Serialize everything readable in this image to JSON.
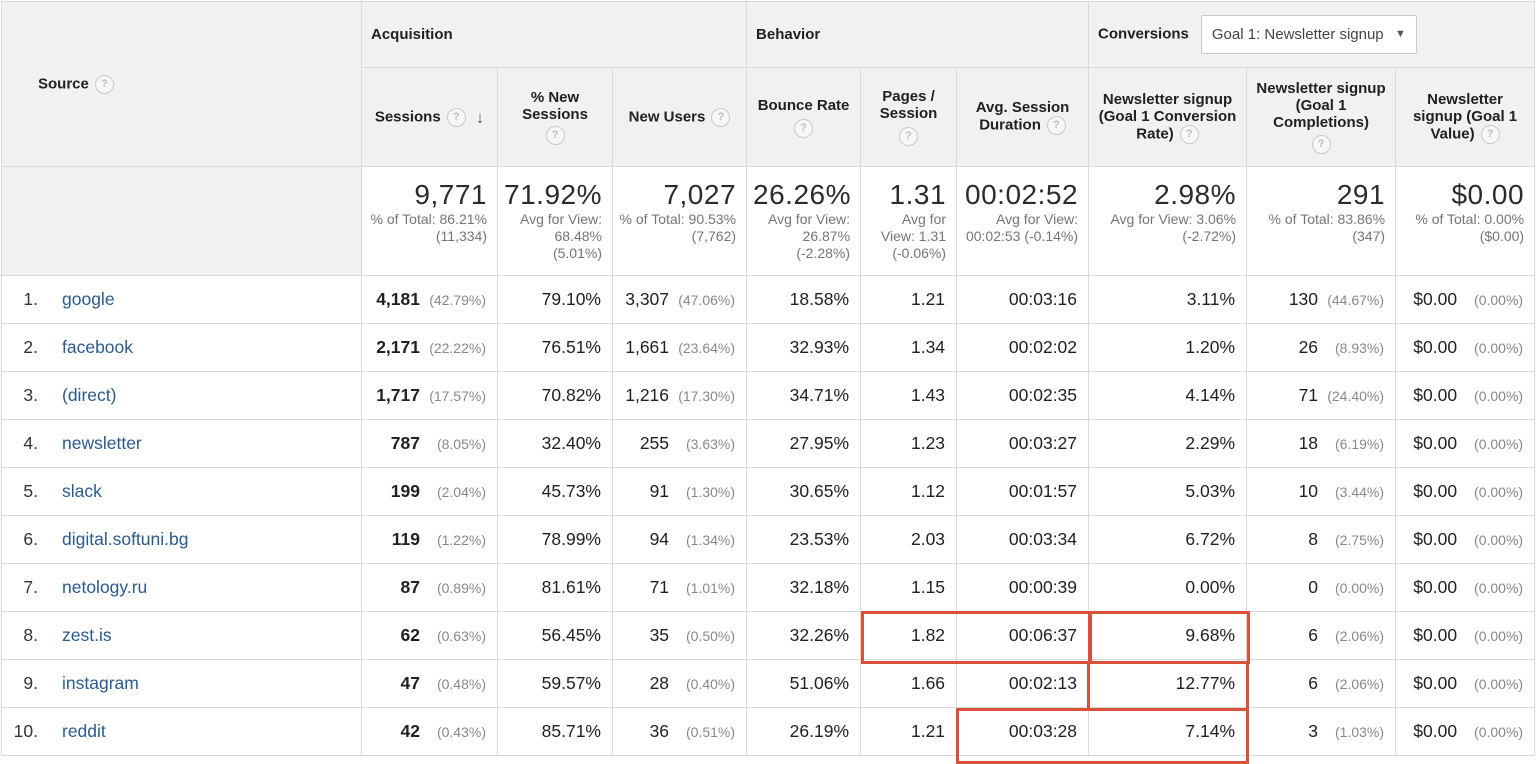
{
  "groups": {
    "acquisition": "Acquisition",
    "behavior": "Behavior",
    "conversions": "Conversions",
    "goal_selected": "Goal 1: Newsletter signup"
  },
  "columns": {
    "source": "Source",
    "sessions": "Sessions",
    "new_sessions": "% New Sessions",
    "new_users": "New Users",
    "bounce_rate": "Bounce Rate",
    "pages_session": "Pages / Session",
    "avg_duration": "Avg. Session Duration",
    "conv_rate": "Newsletter signup (Goal 1 Conversion Rate)",
    "completions": "Newsletter signup (Goal 1 Completions)",
    "value": "Newsletter signup (Goal 1 Value)"
  },
  "help_glyph": "?",
  "totals": {
    "sessions": {
      "big": "9,771",
      "sub": "% of Total: 86.21% (11,334)"
    },
    "new_sessions": {
      "big": "71.92%",
      "sub": "Avg for View: 68.48% (5.01%)"
    },
    "new_users": {
      "big": "7,027",
      "sub": "% of Total: 90.53% (7,762)"
    },
    "bounce_rate": {
      "big": "26.26%",
      "sub": "Avg for View: 26.87% (-2.28%)"
    },
    "pages_session": {
      "big": "1.31",
      "sub": "Avg for View: 1.31 (-0.06%)"
    },
    "avg_duration": {
      "big": "00:02:52",
      "sub": "Avg for View: 00:02:53 (-0.14%)"
    },
    "conv_rate": {
      "big": "2.98%",
      "sub": "Avg for View: 3.06% (-2.72%)"
    },
    "completions": {
      "big": "291",
      "sub": "% of Total: 83.86% (347)"
    },
    "value": {
      "big": "$0.00",
      "sub": "% of Total: 0.00% ($0.00)"
    }
  },
  "rows": [
    {
      "idx": "1.",
      "source": "google",
      "sessions": "4,181",
      "sessions_pct": "(42.79%)",
      "new_sessions": "79.10%",
      "new_users": "3,307",
      "new_users_pct": "(47.06%)",
      "bounce": "18.58%",
      "pages": "1.21",
      "duration": "00:03:16",
      "conv": "3.11%",
      "comp": "130",
      "comp_pct": "(44.67%)",
      "value": "$0.00",
      "value_pct": "(0.00%)"
    },
    {
      "idx": "2.",
      "source": "facebook",
      "sessions": "2,171",
      "sessions_pct": "(22.22%)",
      "new_sessions": "76.51%",
      "new_users": "1,661",
      "new_users_pct": "(23.64%)",
      "bounce": "32.93%",
      "pages": "1.34",
      "duration": "00:02:02",
      "conv": "1.20%",
      "comp": "26",
      "comp_pct": "(8.93%)",
      "value": "$0.00",
      "value_pct": "(0.00%)"
    },
    {
      "idx": "3.",
      "source": "(direct)",
      "sessions": "1,717",
      "sessions_pct": "(17.57%)",
      "new_sessions": "70.82%",
      "new_users": "1,216",
      "new_users_pct": "(17.30%)",
      "bounce": "34.71%",
      "pages": "1.43",
      "duration": "00:02:35",
      "conv": "4.14%",
      "comp": "71",
      "comp_pct": "(24.40%)",
      "value": "$0.00",
      "value_pct": "(0.00%)"
    },
    {
      "idx": "4.",
      "source": "newsletter",
      "sessions": "787",
      "sessions_pct": "(8.05%)",
      "new_sessions": "32.40%",
      "new_users": "255",
      "new_users_pct": "(3.63%)",
      "bounce": "27.95%",
      "pages": "1.23",
      "duration": "00:03:27",
      "conv": "2.29%",
      "comp": "18",
      "comp_pct": "(6.19%)",
      "value": "$0.00",
      "value_pct": "(0.00%)"
    },
    {
      "idx": "5.",
      "source": "slack",
      "sessions": "199",
      "sessions_pct": "(2.04%)",
      "new_sessions": "45.73%",
      "new_users": "91",
      "new_users_pct": "(1.30%)",
      "bounce": "30.65%",
      "pages": "1.12",
      "duration": "00:01:57",
      "conv": "5.03%",
      "comp": "10",
      "comp_pct": "(3.44%)",
      "value": "$0.00",
      "value_pct": "(0.00%)"
    },
    {
      "idx": "6.",
      "source": "digital.softuni.bg",
      "sessions": "119",
      "sessions_pct": "(1.22%)",
      "new_sessions": "78.99%",
      "new_users": "94",
      "new_users_pct": "(1.34%)",
      "bounce": "23.53%",
      "pages": "2.03",
      "duration": "00:03:34",
      "conv": "6.72%",
      "comp": "8",
      "comp_pct": "(2.75%)",
      "value": "$0.00",
      "value_pct": "(0.00%)"
    },
    {
      "idx": "7.",
      "source": "netology.ru",
      "sessions": "87",
      "sessions_pct": "(0.89%)",
      "new_sessions": "81.61%",
      "new_users": "71",
      "new_users_pct": "(1.01%)",
      "bounce": "32.18%",
      "pages": "1.15",
      "duration": "00:00:39",
      "conv": "0.00%",
      "comp": "0",
      "comp_pct": "(0.00%)",
      "value": "$0.00",
      "value_pct": "(0.00%)"
    },
    {
      "idx": "8.",
      "source": "zest.is",
      "sessions": "62",
      "sessions_pct": "(0.63%)",
      "new_sessions": "56.45%",
      "new_users": "35",
      "new_users_pct": "(0.50%)",
      "bounce": "32.26%",
      "pages": "1.82",
      "duration": "00:06:37",
      "conv": "9.68%",
      "comp": "6",
      "comp_pct": "(2.06%)",
      "value": "$0.00",
      "value_pct": "(0.00%)"
    },
    {
      "idx": "9.",
      "source": "instagram",
      "sessions": "47",
      "sessions_pct": "(0.48%)",
      "new_sessions": "59.57%",
      "new_users": "28",
      "new_users_pct": "(0.40%)",
      "bounce": "51.06%",
      "pages": "1.66",
      "duration": "00:02:13",
      "conv": "12.77%",
      "comp": "6",
      "comp_pct": "(2.06%)",
      "value": "$0.00",
      "value_pct": "(0.00%)"
    },
    {
      "idx": "10.",
      "source": "reddit",
      "sessions": "42",
      "sessions_pct": "(0.43%)",
      "new_sessions": "85.71%",
      "new_users": "36",
      "new_users_pct": "(0.51%)",
      "bounce": "26.19%",
      "pages": "1.21",
      "duration": "00:03:28",
      "conv": "7.14%",
      "comp": "3",
      "comp_pct": "(1.03%)",
      "value": "$0.00",
      "value_pct": "(0.00%)"
    }
  ],
  "colors": {
    "highlight": "#d9513b",
    "link": "#2a5b8c",
    "header_bg": "#f1f1f1"
  }
}
